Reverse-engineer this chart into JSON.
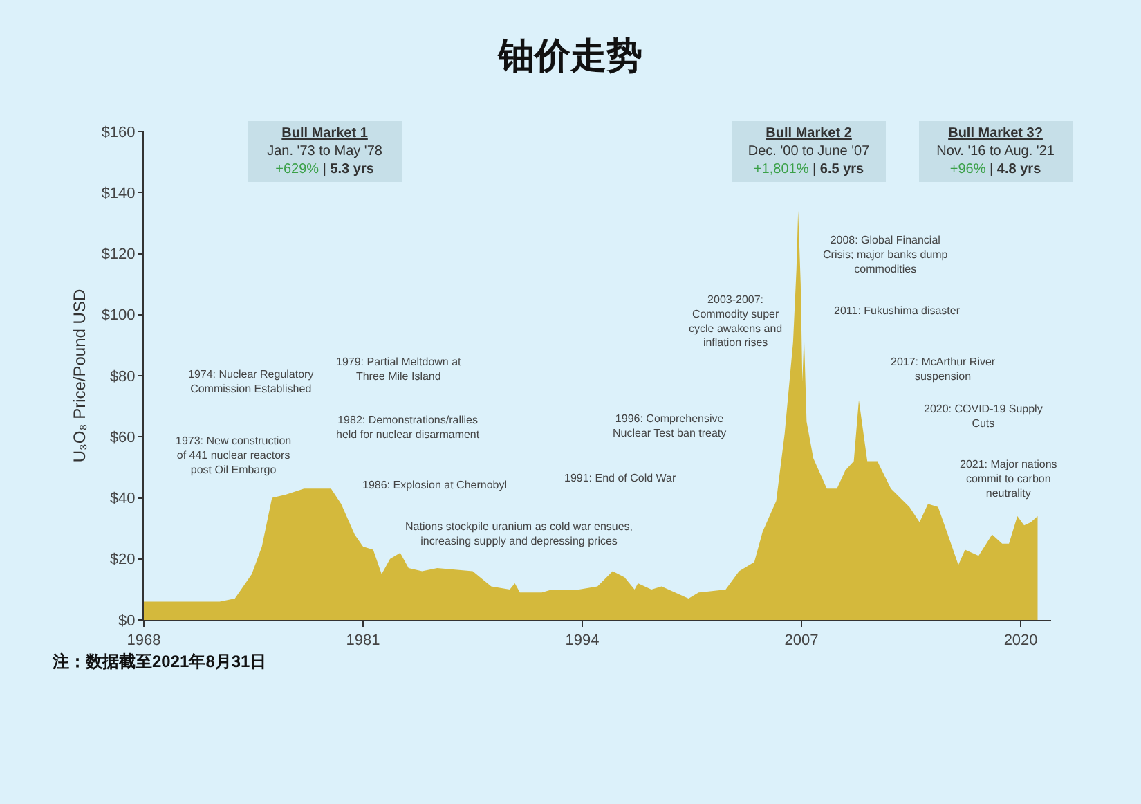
{
  "chart_data": {
    "type": "area",
    "title": "铀价走势",
    "ylabel": "U₃O₈ Price/Pound USD",
    "x": [
      1968,
      1972.5,
      1973.4,
      1974.4,
      1975.0,
      1975.6,
      1976.4,
      1977.5,
      1979.1,
      1979.7,
      1980.5,
      1981.0,
      1981.6,
      1982.1,
      1982.6,
      1983.2,
      1983.7,
      1984.5,
      1985.4,
      1987.5,
      1988.6,
      1989.7,
      1990.0,
      1990.3,
      1991.6,
      1992.2,
      1993.8,
      1994.9,
      1995.8,
      1996.5,
      1997.1,
      1997.3,
      1998.1,
      1998.7,
      2000.3,
      2000.9,
      2002.5,
      2003.3,
      2004.2,
      2004.7,
      2005.5,
      2006.0,
      2006.5,
      2006.7,
      2006.8,
      2006.95,
      2007.05,
      2007.15,
      2007.3,
      2007.7,
      2008.5,
      2009.1,
      2009.6,
      2010.1,
      2010.4,
      2010.9,
      2011.5,
      2012.3,
      2013.4,
      2014.0,
      2014.5,
      2015.1,
      2015.8,
      2016.3,
      2016.7,
      2017.5,
      2018.3,
      2018.9,
      2019.3,
      2019.8,
      2020.2,
      2020.6,
      2021.0
    ],
    "values": [
      6,
      6,
      7,
      15,
      24,
      40,
      41,
      43,
      43,
      38,
      28,
      24,
      23,
      15,
      20,
      22,
      17,
      16,
      17,
      16,
      11,
      10,
      12,
      9,
      9,
      10,
      10,
      11,
      16,
      14,
      10,
      12,
      10,
      11,
      7,
      9,
      10,
      16,
      19,
      29,
      39,
      61,
      91,
      115,
      134,
      110,
      78,
      93,
      65,
      53,
      43,
      43,
      49,
      52,
      72,
      52,
      52,
      43,
      37,
      32,
      38,
      37,
      26,
      18,
      23,
      21,
      28,
      25,
      25,
      34,
      31,
      32,
      34
    ],
    "color": "#d4b93c",
    "xlim": [
      1968,
      2021.8
    ],
    "xticks": [
      1968,
      1981,
      1994,
      2007,
      2020
    ],
    "ylim": [
      0,
      160
    ],
    "yticks": [
      {
        "value": 0,
        "label": "$0"
      },
      {
        "value": 20,
        "label": "$20"
      },
      {
        "value": 40,
        "label": "$40"
      },
      {
        "value": 60,
        "label": "$60"
      },
      {
        "value": 80,
        "label": "$80"
      },
      {
        "value": 100,
        "label": "$100"
      },
      {
        "value": 120,
        "label": "$120"
      },
      {
        "value": 140,
        "label": "$140"
      },
      {
        "value": 160,
        "label": "$160"
      }
    ],
    "grid": false,
    "legend": false,
    "annotations": [
      "Bull Market 1\nJan. '73 to May '78\n+629% | 5.3 yrs",
      "Bull Market 2\nDec. '00 to June '07\n+1,801% | 6.5 yrs",
      "Bull Market 3?\nNov. '16 to Aug. '21\n+96% | 4.8 yrs",
      "1974: Nuclear Regulatory\nCommission Established",
      "1979: Partial Meltdown at\nThree Mile Island",
      "1973: New construction\nof 441 nuclear reactors\npost Oil Embargo",
      "1982: Demonstrations/rallies\nheld for nuclear disarmament",
      "1986: Explosion at Chernobyl",
      "Nations stockpile uranium as cold war ensues,\nincreasing supply and depressing prices",
      "1991: End of Cold War",
      "1996: Comprehensive\nNuclear Test ban treaty",
      "2003-2007:\nCommodity super\ncycle awakens and\ninflation rises",
      "2008: Global Financial\nCrisis; major banks dump\ncommodities",
      "2011: Fukushima disaster",
      "2017: McArthur River\nsuspension",
      "2020: COVID-19 Supply\nCuts",
      "2021: Major nations\ncommit to carbon\nneutrality",
      "注：数据截至2021年8月31日"
    ]
  }
}
